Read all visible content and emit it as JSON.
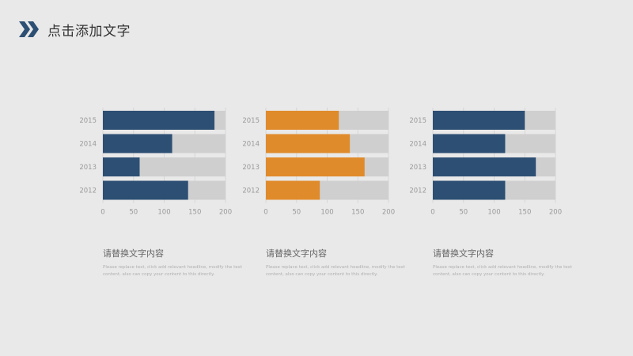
{
  "header": {
    "title": "点击添加文字",
    "logo_icon": "double-chevron-right-icon",
    "accent_color": "#2d4f73"
  },
  "chart_data": [
    {
      "type": "bar",
      "orientation": "horizontal",
      "stacked_background": true,
      "categories": [
        "2015",
        "2014",
        "2013",
        "2012"
      ],
      "values": [
        182,
        113,
        60,
        139
      ],
      "xlim": [
        0,
        200
      ],
      "xticks": [
        "0",
        "50",
        "100",
        "150",
        "200"
      ],
      "color": "#2d4f73",
      "background_color": "#cfcfcf"
    },
    {
      "type": "bar",
      "orientation": "horizontal",
      "stacked_background": true,
      "categories": [
        "2015",
        "2014",
        "2013",
        "2012"
      ],
      "values": [
        119,
        137,
        161,
        88
      ],
      "xlim": [
        0,
        200
      ],
      "xticks": [
        "0",
        "50",
        "100",
        "150",
        "200"
      ],
      "color": "#e08b2b",
      "background_color": "#cfcfcf"
    },
    {
      "type": "bar",
      "orientation": "horizontal",
      "stacked_background": true,
      "categories": [
        "2015",
        "2014",
        "2013",
        "2012"
      ],
      "values": [
        150,
        118,
        168,
        118
      ],
      "xlim": [
        0,
        200
      ],
      "xticks": [
        "0",
        "50",
        "100",
        "150",
        "200"
      ],
      "color": "#2d4f73",
      "background_color": "#cfcfcf"
    }
  ],
  "descriptions": [
    {
      "title": "请替换文字内容",
      "body": "Please replace text, click add relevant headline, modify the text content, also can copy your content to this directly."
    },
    {
      "title": "请替换文字内容",
      "body": "Please replace text, click add relevant headline, modify the text content, also can copy your content to this directly."
    },
    {
      "title": "请替换文字内容",
      "body": "Please replace text, click add relevant headline, modify the text content, also can copy your content to this directly."
    }
  ]
}
